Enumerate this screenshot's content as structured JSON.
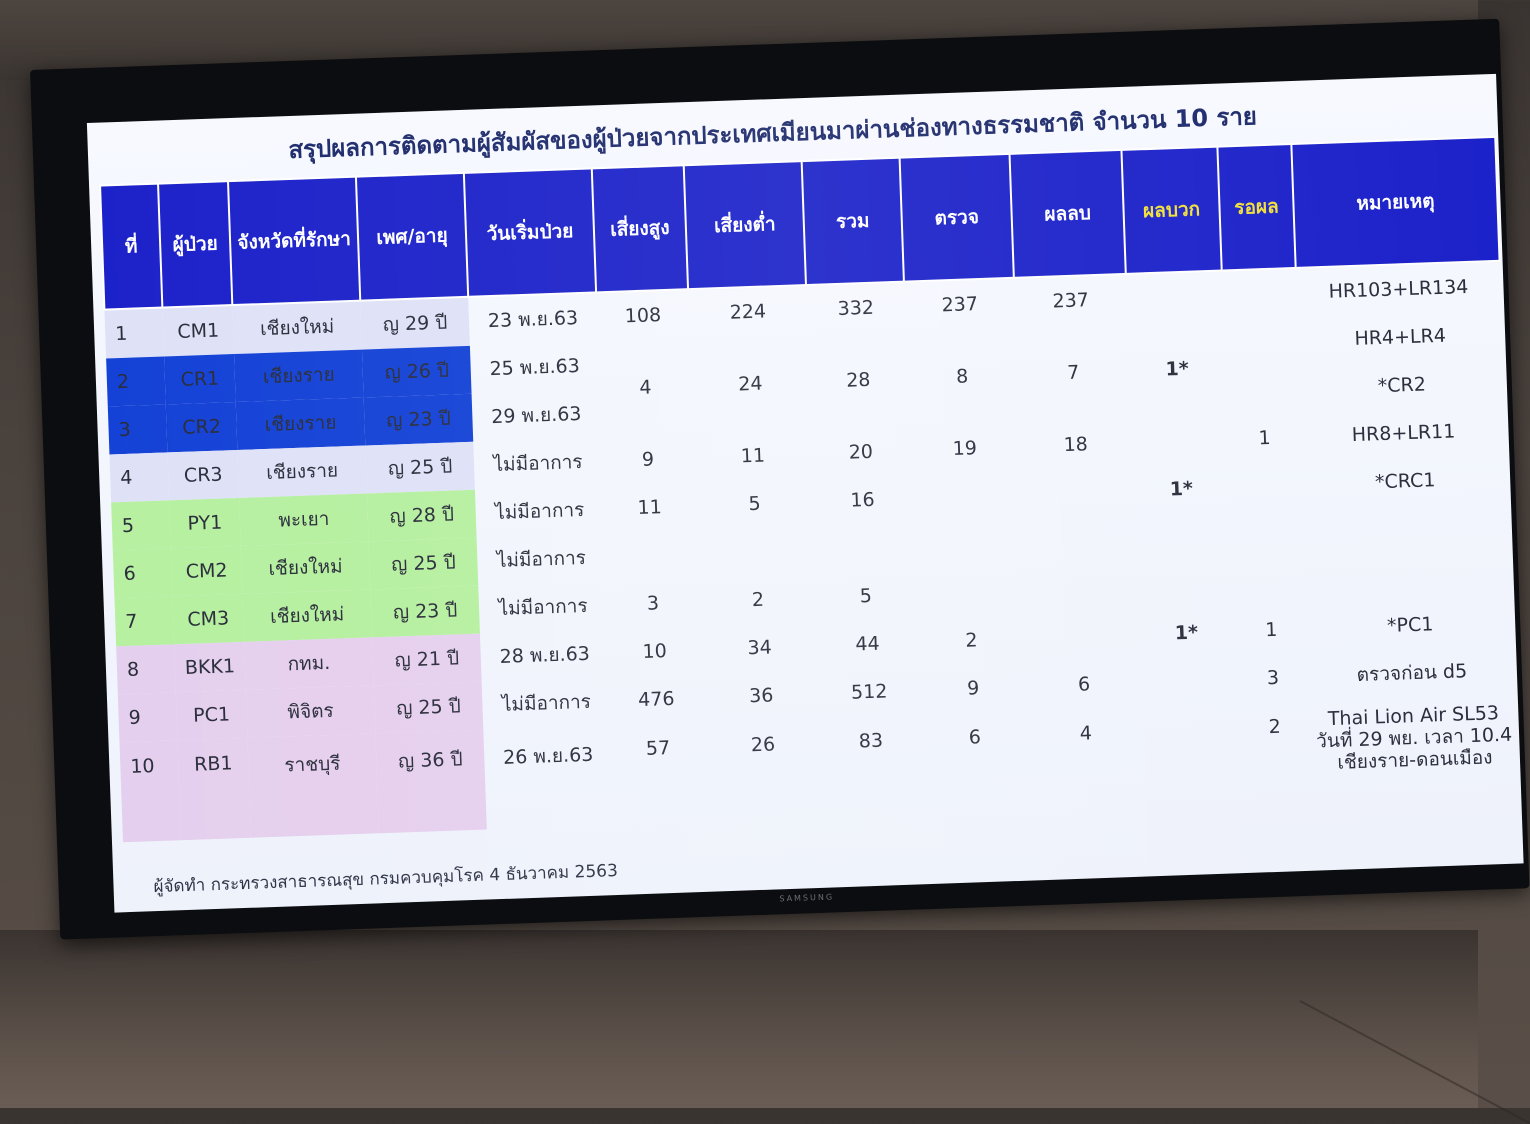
{
  "title": "สรุปผลการติดตามผู้สัมผัสของผู้ป่วยจากประเทศเมียนมาผ่านช่องทางธรรมชาติ จำนวน 10 ราย",
  "headers": [
    "ที่",
    "ผู้ป่วย",
    "จังหวัดที่รักษา",
    "เพศ/อายุ",
    "วันเริ่มป่วย",
    "เสี่ยงสูง",
    "เสี่ยงต่ำ",
    "รวม",
    "ตรวจ",
    "ผลลบ",
    "ผลบวก",
    "รอผล",
    "หมายเหตุ"
  ],
  "rows": [
    {
      "no": "1",
      "patient": "CM1",
      "province": "เชียงใหม่",
      "sex_age": "ญ 29 ปี",
      "onset": "23 พ.ย.63",
      "high": "108",
      "low": "224",
      "total": "332",
      "tested": "237",
      "negative": "237",
      "positive": "",
      "pending": "",
      "note": "HR103+LR134"
    },
    {
      "no": "2",
      "patient": "CR1",
      "province": "เชียงราย",
      "sex_age": "ญ 26 ปี",
      "onset": "25 พ.ย.63",
      "high": "4",
      "low": "24",
      "total": "28",
      "tested": "8",
      "negative": "7",
      "positive": "1*",
      "pending": "",
      "note": "HR4+LR4"
    },
    {
      "no": "3",
      "patient": "CR2",
      "province": "เชียงราย",
      "sex_age": "ญ 23 ปี",
      "onset": "29 พ.ย.63",
      "high": "",
      "low": "",
      "total": "",
      "tested": "",
      "negative": "",
      "positive": "",
      "pending": "",
      "note": "*CR2"
    },
    {
      "no": "4",
      "patient": "CR3",
      "province": "เชียงราย",
      "sex_age": "ญ 25 ปี",
      "onset": "ไม่มีอาการ",
      "high": "9",
      "low": "11",
      "total": "20",
      "tested": "19",
      "negative": "18",
      "positive": "",
      "pending": "1",
      "note": "HR8+LR11"
    },
    {
      "no": "5",
      "patient": "PY1",
      "province": "พะเยา",
      "sex_age": "ญ 28 ปี",
      "onset": "ไม่มีอาการ",
      "high": "11",
      "low": "5",
      "total": "16",
      "tested": "",
      "negative": "",
      "positive": "1*",
      "pending": "",
      "note": "*CRC1"
    },
    {
      "no": "6",
      "patient": "CM2",
      "province": "เชียงใหม่",
      "sex_age": "ญ 25 ปี",
      "onset": "ไม่มีอาการ",
      "high": "",
      "low": "",
      "total": "",
      "tested": "",
      "negative": "",
      "positive": "",
      "pending": "",
      "note": ""
    },
    {
      "no": "7",
      "patient": "CM3",
      "province": "เชียงใหม่",
      "sex_age": "ญ 23 ปี",
      "onset": "ไม่มีอาการ",
      "high": "3",
      "low": "2",
      "total": "5",
      "tested": "",
      "negative": "",
      "positive": "",
      "pending": "",
      "note": ""
    },
    {
      "no": "8",
      "patient": "BKK1",
      "province": "กทม.",
      "sex_age": "ญ 21 ปี",
      "onset": "28 พ.ย.63",
      "high": "10",
      "low": "34",
      "total": "44",
      "tested": "2",
      "negative": "",
      "positive": "1*",
      "pending": "1",
      "note": "*PC1"
    },
    {
      "no": "9",
      "patient": "PC1",
      "province": "พิจิตร",
      "sex_age": "ญ 25 ปี",
      "onset": "ไม่มีอาการ",
      "high": "476",
      "low": "36",
      "total": "512",
      "tested": "9",
      "negative": "6",
      "positive": "",
      "pending": "3",
      "note": "ตรวจก่อน d5"
    },
    {
      "no": "10",
      "patient": "RB1",
      "province": "ราชบุรี",
      "sex_age": "ญ 36 ปี",
      "onset": "26 พ.ย.63",
      "high": "57",
      "low": "26",
      "total": "83",
      "tested": "6",
      "negative": "4",
      "positive": "",
      "pending": "2",
      "note": "Thai Lion Air SL53"
    }
  ],
  "note_extra": {
    "line2": "วันที่ 29 พย. เวลา 10.4",
    "line3": "เชียงราย-ดอนเมือง"
  },
  "footer": "ผู้จัดทำ  กระทรวงสาธารณสุข กรมควบคุมโรค 4 ธันวาคม 2563",
  "tv_brand": "SAMSUNG",
  "colors": {
    "header_bg": "#1c22c9",
    "row_lavender": "#dfe2f7",
    "row_blue": "#1442d6",
    "row_green": "#b6f0a0",
    "row_pink": "#e5cfee",
    "positive_text": "#3b3fd9",
    "note_red": "#e0305a"
  }
}
